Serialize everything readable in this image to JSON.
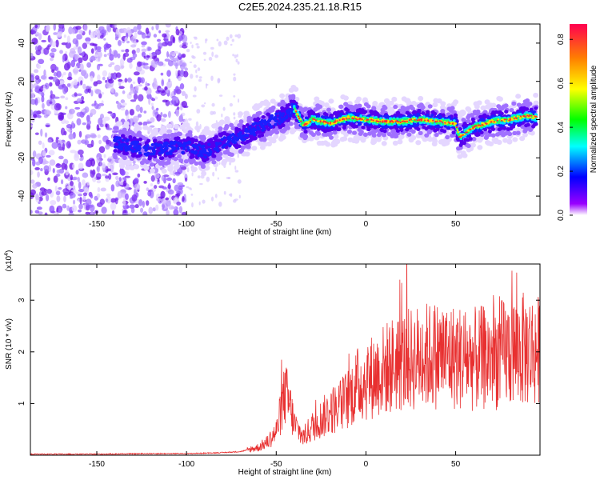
{
  "title": "C2E5.2024.235.21.18.R15",
  "chart_data": [
    {
      "type": "heatmap",
      "xlabel": "Height of straight line (km)",
      "ylabel": "Frequency (Hz)",
      "xlim": [
        -187,
        97
      ],
      "ylim": [
        -50,
        50
      ],
      "xticks": [
        -150,
        -100,
        -50,
        0,
        50
      ],
      "yticks": [
        -40,
        -20,
        0,
        20,
        40
      ],
      "colorbar": {
        "label": "Normalized spectral amplitude",
        "range": [
          0.0,
          0.87
        ],
        "ticks": [
          0.0,
          0.2,
          0.4,
          0.6,
          0.8
        ]
      },
      "ridge": {
        "note_x": [
          -140,
          -130,
          -120,
          -110,
          -100,
          -90,
          -80,
          -70,
          -60,
          -50,
          -45,
          -40,
          -35,
          -30,
          -20,
          -10,
          0,
          10,
          20,
          30,
          40,
          50,
          52,
          60,
          70,
          80,
          90,
          95
        ],
        "freq": [
          -12,
          -14,
          -16,
          -15,
          -14,
          -17,
          -12,
          -9,
          -4,
          0,
          2,
          6,
          -3,
          0,
          -2,
          1,
          0,
          -1,
          -1,
          0,
          -1,
          -2,
          -9,
          -4,
          -1,
          0,
          2,
          1
        ]
      }
    },
    {
      "type": "line",
      "xlabel": "Height of straight line (km)",
      "ylabel": "SNR (10 * v/v)",
      "y_multiplier": "(x10^4)",
      "xlim": [
        -187,
        97
      ],
      "ylim": [
        0,
        3.7
      ],
      "xticks": [
        -150,
        -100,
        -50,
        0,
        50
      ],
      "yticks": [
        1,
        2,
        3
      ],
      "series": [
        {
          "color": "#e83030",
          "x": [
            -187,
            -150,
            -120,
            -100,
            -90,
            -80,
            -70,
            -60,
            -55,
            -50,
            -47,
            -45,
            -42,
            -40,
            -38,
            -35,
            -30,
            -25,
            -20,
            -15,
            -10,
            -5,
            0,
            5,
            10,
            15,
            20,
            30,
            40,
            50,
            60,
            70,
            80,
            90,
            97
          ],
          "y": [
            0.02,
            0.02,
            0.03,
            0.03,
            0.04,
            0.05,
            0.07,
            0.15,
            0.25,
            0.45,
            0.9,
            1.2,
            0.9,
            0.6,
            0.5,
            0.35,
            0.55,
            0.7,
            0.85,
            0.95,
            1.1,
            1.35,
            1.45,
            1.55,
            1.65,
            1.75,
            1.8,
            1.9,
            1.95,
            1.9,
            1.85,
            1.9,
            2.0,
            2.05,
            2.0
          ]
        }
      ]
    }
  ]
}
